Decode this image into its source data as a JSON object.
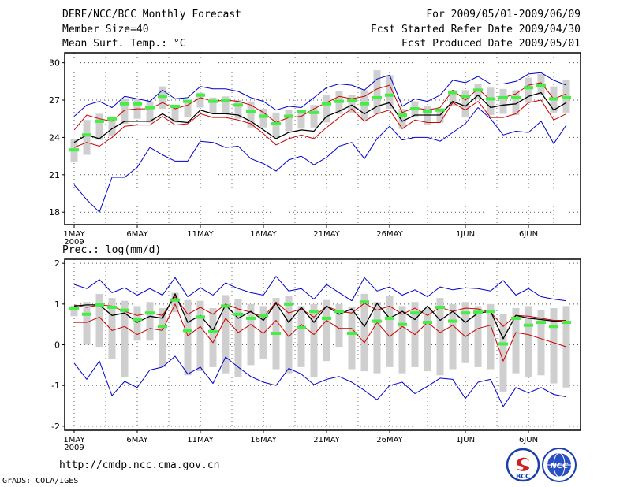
{
  "header": {
    "title": "DERF/NCC/BCC Monthly Forecast",
    "member_size": "Member Size=40",
    "variable": "Mean Surf. Temp.: °C",
    "period": "For 2009/05/01-2009/06/09",
    "start_ref": "Fcst Started Refer Date 2009/04/30",
    "produced": "Fcst Produced Date 2009/05/01"
  },
  "footer": {
    "url": "http://cmdp.ncc.cma.gov.cn",
    "grads": "GrADS: COLA/IGES",
    "logo1_text": "BCC",
    "logo2_text": "NCC"
  },
  "colors": {
    "blue": "#0000cc",
    "red": "#cc0000",
    "green": "#44ee44",
    "box": "#cfcfcf",
    "black": "#000000"
  },
  "chart_data": [
    {
      "type": "line",
      "title": "",
      "ylabel": "Mean Surf. Temp.: °C",
      "ylim": [
        17,
        30.8
      ],
      "yticks": [
        18,
        21,
        24,
        27,
        30
      ],
      "xticks": [
        {
          "day": 0,
          "label": "1MAY",
          "sub": "2009"
        },
        {
          "day": 5,
          "label": "6MAY"
        },
        {
          "day": 10,
          "label": "11MAY"
        },
        {
          "day": 15,
          "label": "16MAY"
        },
        {
          "day": 20,
          "label": "21MAY"
        },
        {
          "day": 25,
          "label": "26MAY"
        },
        {
          "day": 31,
          "label": "1JUN"
        },
        {
          "day": 36,
          "label": "6JUN"
        }
      ],
      "max": [
        25.7,
        26.6,
        26.9,
        26.4,
        27.3,
        27.1,
        26.9,
        27.8,
        27.1,
        27.2,
        28.1,
        27.9,
        27.9,
        27.7,
        27.2,
        26.9,
        26.2,
        26.5,
        26.4,
        27.2,
        28.0,
        28.3,
        28.2,
        27.8,
        28.7,
        29.0,
        26.5,
        27.1,
        26.9,
        27.4,
        28.6,
        28.4,
        28.9,
        28.3,
        28.3,
        28.5,
        29.1,
        29.2,
        28.6,
        28.2
      ],
      "q75": [
        24.6,
        25.8,
        25.5,
        25.3,
        26.2,
        26.3,
        26.3,
        26.8,
        26.3,
        26.6,
        27.2,
        26.9,
        27.0,
        26.9,
        26.6,
        26.0,
        25.2,
        25.6,
        25.7,
        26.3,
        26.8,
        27.3,
        27.1,
        27.3,
        27.9,
        28.2,
        26.0,
        26.4,
        26.2,
        26.4,
        27.8,
        27.0,
        27.9,
        27.0,
        27.2,
        27.5,
        28.2,
        28.4,
        27.1,
        27.5
      ],
      "mean": [
        23.6,
        24.2,
        23.9,
        24.7,
        25.3,
        25.3,
        25.3,
        25.9,
        25.3,
        25.2,
        26.2,
        25.9,
        25.9,
        25.8,
        25.3,
        24.6,
        23.9,
        24.4,
        24.6,
        24.5,
        25.7,
        26.1,
        26.6,
        25.9,
        26.5,
        26.8,
        25.3,
        25.8,
        25.8,
        25.8,
        26.9,
        26.5,
        27.4,
        26.4,
        26.6,
        26.7,
        27.3,
        27.6,
        26.2,
        26.8
      ],
      "q25": [
        23.2,
        23.6,
        23.3,
        24.0,
        24.9,
        25.0,
        25.0,
        25.7,
        25.0,
        25.1,
        25.9,
        25.6,
        25.6,
        25.4,
        25.1,
        24.3,
        23.4,
        23.9,
        24.2,
        23.9,
        24.8,
        25.6,
        26.3,
        25.3,
        25.9,
        26.2,
        24.7,
        25.4,
        25.2,
        25.2,
        26.8,
        26.2,
        26.9,
        25.6,
        25.6,
        25.9,
        26.8,
        27.0,
        25.4,
        25.9
      ],
      "min": [
        20.2,
        19.0,
        18.0,
        20.8,
        20.8,
        21.6,
        23.2,
        22.6,
        22.1,
        22.1,
        23.7,
        23.6,
        23.2,
        23.3,
        22.3,
        21.9,
        21.3,
        22.2,
        22.5,
        21.8,
        22.4,
        23.3,
        23.6,
        22.3,
        23.9,
        24.9,
        23.8,
        24.0,
        24.0,
        23.7,
        24.4,
        25.1,
        26.4,
        25.5,
        24.2,
        24.5,
        24.4,
        25.3,
        23.5,
        25.0
      ],
      "median": [
        23.0,
        24.2,
        25.3,
        25.5,
        26.7,
        26.7,
        26.4,
        27.3,
        26.5,
        26.9,
        27.4,
        26.9,
        27.0,
        26.6,
        26.1,
        25.7,
        25.1,
        25.7,
        26.1,
        26.0,
        26.7,
        26.9,
        27.0,
        26.7,
        27.2,
        27.4,
        25.8,
        26.3,
        26.1,
        26.2,
        27.6,
        27.3,
        27.8,
        27.1,
        27.2,
        27.2,
        28.0,
        28.2,
        27.1,
        27.2
      ],
      "box_hi": [
        23.9,
        25.4,
        25.9,
        25.6,
        27.1,
        27.1,
        26.9,
        28.1,
        26.6,
        27.0,
        27.6,
        27.2,
        27.3,
        27.0,
        26.9,
        26.3,
        26.0,
        26.2,
        26.2,
        26.6,
        27.4,
        27.7,
        27.4,
        27.8,
        29.4,
        29.0,
        26.3,
        26.9,
        26.5,
        26.3,
        27.8,
        27.8,
        28.3,
        28.0,
        27.9,
        27.8,
        28.8,
        29.1,
        28.1,
        28.6
      ],
      "box_lo": [
        22.0,
        22.6,
        23.8,
        24.1,
        25.1,
        25.5,
        25.2,
        26.3,
        25.2,
        25.6,
        26.4,
        26.0,
        25.9,
        25.5,
        24.8,
        24.8,
        24.0,
        24.5,
        24.7,
        24.8,
        25.2,
        25.9,
        26.0,
        25.4,
        25.9,
        26.3,
        24.7,
        25.6,
        25.0,
        25.2,
        26.5,
        25.6,
        27.1,
        25.8,
        25.9,
        25.8,
        26.8,
        27.4,
        26.0,
        26.0
      ]
    },
    {
      "type": "line",
      "title": "",
      "ylabel": "Prec.: log(mm/d)",
      "ylim": [
        -2.1,
        2.1
      ],
      "yticks": [
        -2,
        -1,
        0,
        1,
        2
      ],
      "xticks": [
        {
          "day": 0,
          "label": "1MAY",
          "sub": "2009"
        },
        {
          "day": 5,
          "label": "6MAY"
        },
        {
          "day": 10,
          "label": "11MAY"
        },
        {
          "day": 15,
          "label": "16MAY"
        },
        {
          "day": 20,
          "label": "21MAY"
        },
        {
          "day": 25,
          "label": "26MAY"
        },
        {
          "day": 31,
          "label": "1JUN"
        },
        {
          "day": 36,
          "label": "6JUN"
        }
      ],
      "max": [
        1.48,
        1.38,
        1.6,
        1.28,
        1.4,
        1.22,
        1.38,
        1.22,
        1.65,
        1.18,
        1.4,
        1.22,
        1.52,
        1.38,
        1.28,
        1.22,
        1.68,
        1.32,
        1.38,
        1.12,
        1.48,
        1.28,
        1.08,
        1.65,
        1.32,
        1.42,
        1.22,
        1.35,
        1.18,
        1.42,
        1.35,
        1.4,
        1.38,
        1.32,
        1.58,
        1.22,
        1.38,
        1.18,
        1.12,
        1.08
      ],
      "q75": [
        0.98,
        0.92,
        0.98,
        0.95,
        0.82,
        0.72,
        0.78,
        0.72,
        1.18,
        0.75,
        0.92,
        0.75,
        1.0,
        0.88,
        0.8,
        0.68,
        1.05,
        0.78,
        0.88,
        0.68,
        0.95,
        0.82,
        0.78,
        1.02,
        0.85,
        0.95,
        0.75,
        0.9,
        0.72,
        0.92,
        0.82,
        0.9,
        0.88,
        0.8,
        0.45,
        0.72,
        0.7,
        0.65,
        0.6,
        0.6
      ],
      "mean": [
        0.95,
        0.98,
        0.98,
        0.72,
        0.78,
        0.55,
        0.7,
        0.65,
        1.25,
        0.55,
        0.72,
        0.35,
        0.98,
        0.65,
        0.82,
        0.6,
        1.02,
        0.55,
        0.92,
        0.55,
        0.95,
        0.75,
        0.88,
        0.45,
        1.02,
        0.65,
        0.82,
        0.62,
        0.95,
        0.6,
        0.82,
        0.55,
        0.78,
        0.82,
        0.15,
        0.72,
        0.65,
        0.62,
        0.58,
        0.57
      ],
      "q25": [
        0.55,
        0.55,
        0.68,
        0.35,
        0.45,
        0.25,
        0.4,
        0.35,
        1.0,
        0.22,
        0.45,
        0.05,
        0.65,
        0.3,
        0.5,
        0.28,
        0.6,
        0.2,
        0.5,
        0.25,
        0.6,
        0.4,
        0.4,
        0.05,
        0.55,
        0.2,
        0.45,
        0.25,
        0.55,
        0.3,
        0.48,
        0.2,
        0.4,
        0.48,
        -0.4,
        0.3,
        0.25,
        0.15,
        0.05,
        -0.05
      ],
      "min": [
        -0.45,
        -0.85,
        -0.4,
        -1.25,
        -0.9,
        -1.05,
        -0.62,
        -0.55,
        -0.28,
        -0.72,
        -0.55,
        -0.95,
        -0.3,
        -0.55,
        -0.78,
        -0.92,
        -1.0,
        -0.58,
        -0.72,
        -0.98,
        -0.85,
        -0.78,
        -0.92,
        -1.12,
        -1.35,
        -1.0,
        -0.92,
        -1.2,
        -1.02,
        -0.82,
        -0.85,
        -1.32,
        -0.92,
        -0.85,
        -1.52,
        -1.05,
        -1.18,
        -1.05,
        -1.22,
        -1.28
      ],
      "median": [
        0.88,
        0.75,
        0.98,
        0.92,
        0.85,
        0.62,
        0.78,
        0.45,
        1.1,
        0.35,
        0.68,
        0.32,
        0.95,
        0.75,
        0.65,
        0.72,
        0.28,
        1.0,
        0.42,
        0.82,
        0.65,
        0.82,
        0.28,
        1.05,
        0.58,
        0.65,
        0.5,
        0.78,
        0.55,
        0.92,
        0.58,
        0.78,
        0.8,
        0.82,
        0.02,
        0.65,
        0.48,
        0.55,
        0.45,
        0.55
      ],
      "box_hi": [
        0.96,
        1.05,
        1.25,
        1.15,
        1.08,
        0.95,
        1.05,
        0.9,
        1.28,
        1.1,
        1.08,
        0.9,
        1.22,
        1.12,
        1.0,
        0.95,
        1.15,
        1.2,
        0.95,
        1.0,
        1.1,
        1.0,
        0.92,
        1.25,
        1.05,
        1.2,
        0.95,
        1.05,
        0.9,
        1.15,
        1.0,
        1.05,
        0.95,
        1.0,
        0.75,
        0.9,
        0.95,
        0.85,
        0.9,
        0.95
      ],
      "box_lo": [
        0.7,
        0.0,
        -0.05,
        -0.35,
        -0.8,
        0.1,
        0.1,
        -0.55,
        0.8,
        -0.75,
        -0.65,
        -0.55,
        -0.7,
        -0.8,
        -0.5,
        -0.35,
        -0.6,
        -0.7,
        -0.55,
        -0.8,
        -0.4,
        -0.05,
        -0.6,
        -0.65,
        -0.7,
        -0.55,
        -0.7,
        -0.55,
        -0.65,
        -0.75,
        -0.6,
        -0.45,
        -0.55,
        -0.6,
        -1.15,
        -0.7,
        -0.8,
        -0.75,
        -0.95,
        -1.05
      ]
    }
  ]
}
